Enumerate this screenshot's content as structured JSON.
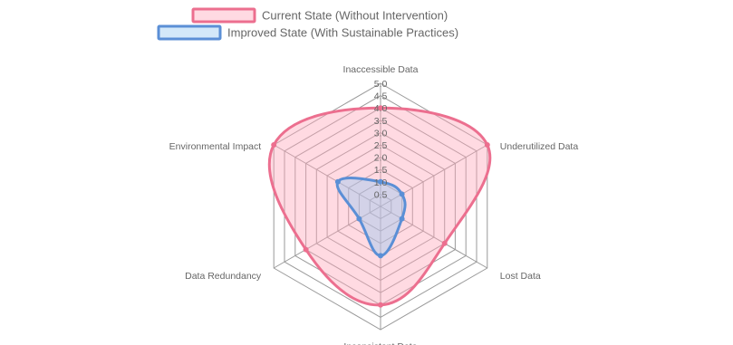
{
  "chart_data": {
    "type": "radar",
    "labels": [
      "Inaccessible Data",
      "Underutilized Data",
      "Lost Data",
      "Inconsistent Data",
      "Data Redundancy",
      "Environmental Impact"
    ],
    "rmin": 0,
    "rmax": 5.0,
    "ticks": [
      "0.5",
      "1.0",
      "1.5",
      "2.0",
      "2.5",
      "3.0",
      "3.5",
      "4.0",
      "4.5",
      "5.0"
    ],
    "series": [
      {
        "name": "Current State (Without Intervention)",
        "values": [
          4.0,
          5.0,
          3.0,
          4.0,
          3.5,
          5.0
        ],
        "stroke": "#ec6f8f",
        "fill": "rgba(255,166,187,0.42)"
      },
      {
        "name": "Improved State (With Sustainable Practices)",
        "values": [
          1.0,
          1.0,
          1.0,
          2.0,
          1.0,
          2.0
        ],
        "stroke": "#5b8fd6",
        "fill": "rgba(150,200,240,0.42)"
      }
    ],
    "legend_position": "top",
    "grid": true
  }
}
